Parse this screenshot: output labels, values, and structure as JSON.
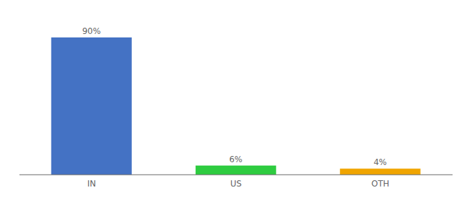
{
  "chart_data": {
    "type": "bar",
    "categories": [
      "IN",
      "US",
      "OTH"
    ],
    "values": [
      90,
      6,
      4
    ],
    "value_labels": [
      "90%",
      "6%",
      "4%"
    ],
    "colors": [
      "#4472c4",
      "#2ecc40",
      "#f0a500"
    ],
    "ylim": [
      0,
      100
    ],
    "grid": false,
    "data_labels": true,
    "tick_labels": "x"
  }
}
